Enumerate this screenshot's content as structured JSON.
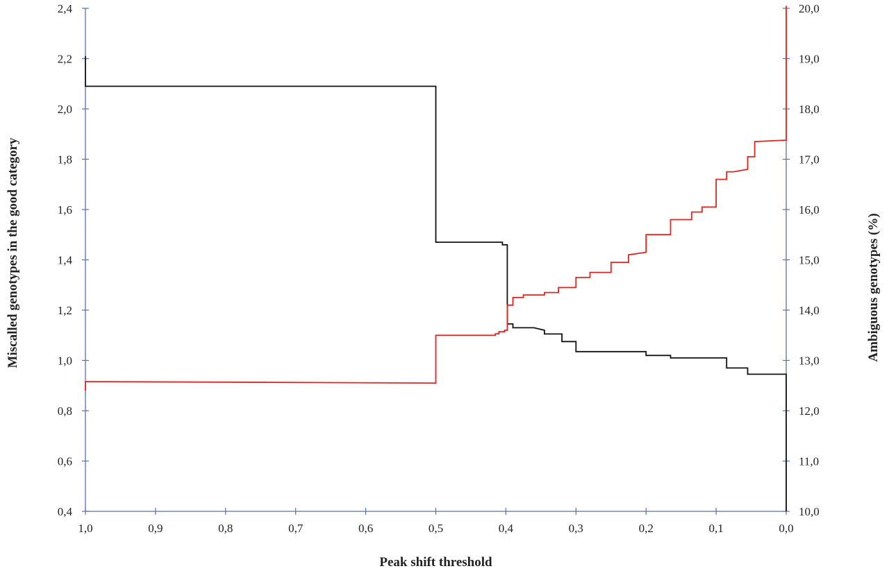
{
  "chart_data": {
    "type": "line",
    "xlabel": "Peak shift threshold",
    "ylabel_left": "Miscalled genotypes in the good category",
    "ylabel_right": "Ambiguous genotypes (%)",
    "xlim": [
      1.0,
      0.0
    ],
    "x_reversed": true,
    "ylim_left": [
      0.4,
      2.4
    ],
    "ylim_right": [
      10.0,
      20.0
    ],
    "grid": false,
    "x_ticks": [
      {
        "value": 1.0,
        "label": "1,0"
      },
      {
        "value": 0.9,
        "label": "0,9"
      },
      {
        "value": 0.8,
        "label": "0,8"
      },
      {
        "value": 0.7,
        "label": "0,7"
      },
      {
        "value": 0.6,
        "label": "0,6"
      },
      {
        "value": 0.5,
        "label": "0,5"
      },
      {
        "value": 0.4,
        "label": "0,4"
      },
      {
        "value": 0.3,
        "label": "0,3"
      },
      {
        "value": 0.2,
        "label": "0,2"
      },
      {
        "value": 0.1,
        "label": "0,1"
      },
      {
        "value": 0.0,
        "label": "0,0"
      }
    ],
    "y_left_ticks": [
      {
        "value": 0.4,
        "label": "0,4"
      },
      {
        "value": 0.6,
        "label": "0,6"
      },
      {
        "value": 0.8,
        "label": "0,8"
      },
      {
        "value": 1.0,
        "label": "1,0"
      },
      {
        "value": 1.2,
        "label": "1,2"
      },
      {
        "value": 1.4,
        "label": "1,4"
      },
      {
        "value": 1.6,
        "label": "1,6"
      },
      {
        "value": 1.8,
        "label": "1,8"
      },
      {
        "value": 2.0,
        "label": "2,0"
      },
      {
        "value": 2.2,
        "label": "2,2"
      },
      {
        "value": 2.4,
        "label": "2,4"
      }
    ],
    "y_right_ticks": [
      {
        "value": 10.0,
        "label": "10,0"
      },
      {
        "value": 11.0,
        "label": "11,0"
      },
      {
        "value": 12.0,
        "label": "12,0"
      },
      {
        "value": 13.0,
        "label": "13,0"
      },
      {
        "value": 14.0,
        "label": "14,0"
      },
      {
        "value": 15.0,
        "label": "15,0"
      },
      {
        "value": 16.0,
        "label": "16,0"
      },
      {
        "value": 17.0,
        "label": "17,0"
      },
      {
        "value": 18.0,
        "label": "18,0"
      },
      {
        "value": 19.0,
        "label": "19,0"
      },
      {
        "value": 20.0,
        "label": "20,0"
      }
    ],
    "series": [
      {
        "axis": "left",
        "color": "#111111",
        "step": true,
        "points": [
          [
            1.0,
            2.21
          ],
          [
            1.0,
            2.09
          ],
          [
            0.5,
            2.09
          ],
          [
            0.5,
            1.47
          ],
          [
            0.405,
            1.47
          ],
          [
            0.405,
            1.46
          ],
          [
            0.398,
            1.46
          ],
          [
            0.398,
            1.145
          ],
          [
            0.39,
            1.145
          ],
          [
            0.39,
            1.13
          ],
          [
            0.36,
            1.13
          ],
          [
            0.345,
            1.12
          ],
          [
            0.345,
            1.105
          ],
          [
            0.32,
            1.105
          ],
          [
            0.32,
            1.075
          ],
          [
            0.3,
            1.075
          ],
          [
            0.3,
            1.035
          ],
          [
            0.2,
            1.035
          ],
          [
            0.2,
            1.02
          ],
          [
            0.165,
            1.02
          ],
          [
            0.165,
            1.01
          ],
          [
            0.085,
            1.01
          ],
          [
            0.085,
            0.97
          ],
          [
            0.055,
            0.97
          ],
          [
            0.055,
            0.945
          ],
          [
            0.0,
            0.945
          ],
          [
            0.0,
            0.4
          ]
        ]
      },
      {
        "axis": "right",
        "color": "#e8231e",
        "step": true,
        "points": [
          [
            1.0,
            12.4
          ],
          [
            1.0,
            12.58
          ],
          [
            0.5,
            12.55
          ],
          [
            0.5,
            13.5
          ],
          [
            0.415,
            13.5
          ],
          [
            0.415,
            13.53
          ],
          [
            0.41,
            13.53
          ],
          [
            0.41,
            13.57
          ],
          [
            0.402,
            13.57
          ],
          [
            0.402,
            13.6
          ],
          [
            0.398,
            13.6
          ],
          [
            0.398,
            14.1
          ],
          [
            0.39,
            14.1
          ],
          [
            0.39,
            14.25
          ],
          [
            0.375,
            14.25
          ],
          [
            0.375,
            14.3
          ],
          [
            0.345,
            14.3
          ],
          [
            0.345,
            14.35
          ],
          [
            0.325,
            14.35
          ],
          [
            0.325,
            14.45
          ],
          [
            0.3,
            14.45
          ],
          [
            0.3,
            14.65
          ],
          [
            0.28,
            14.65
          ],
          [
            0.28,
            14.75
          ],
          [
            0.25,
            14.75
          ],
          [
            0.25,
            14.95
          ],
          [
            0.225,
            14.95
          ],
          [
            0.225,
            15.1
          ],
          [
            0.2,
            15.15
          ],
          [
            0.2,
            15.5
          ],
          [
            0.165,
            15.5
          ],
          [
            0.165,
            15.8
          ],
          [
            0.135,
            15.8
          ],
          [
            0.135,
            15.95
          ],
          [
            0.12,
            15.95
          ],
          [
            0.12,
            16.05
          ],
          [
            0.1,
            16.05
          ],
          [
            0.1,
            16.6
          ],
          [
            0.085,
            16.6
          ],
          [
            0.085,
            16.75
          ],
          [
            0.075,
            16.75
          ],
          [
            0.055,
            16.8
          ],
          [
            0.055,
            17.05
          ],
          [
            0.045,
            17.05
          ],
          [
            0.045,
            17.35
          ],
          [
            0.0,
            17.38
          ],
          [
            0.0,
            20.05
          ]
        ]
      }
    ]
  }
}
